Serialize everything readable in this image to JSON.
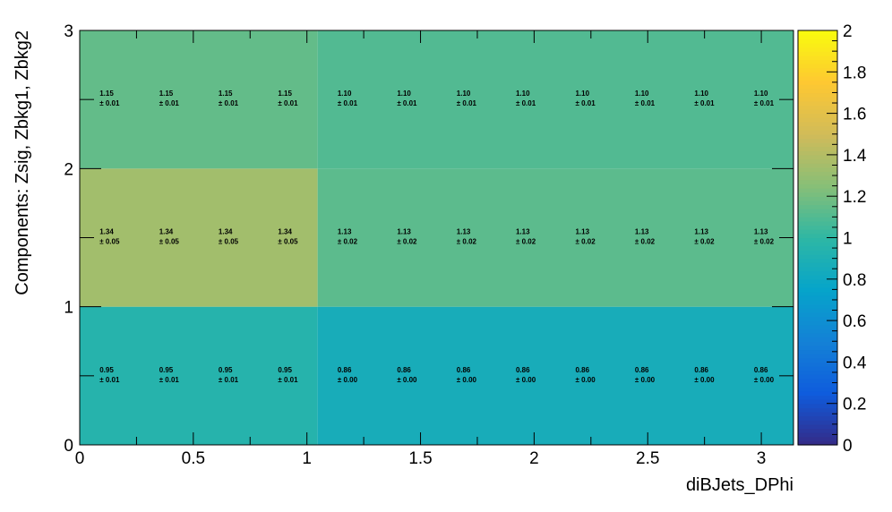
{
  "chart_data": {
    "type": "heatmap",
    "xlabel": "diBJets_DPhi",
    "ylabel": "Components: Zsig, Zbkg1, Zbkg2",
    "xlim": [
      0,
      3.14159
    ],
    "ylim": [
      0,
      3
    ],
    "zlim": [
      0,
      2
    ],
    "x_ticks": [
      "0",
      "0.5",
      "1",
      "1.5",
      "2",
      "2.5",
      "3"
    ],
    "y_ticks": [
      "0",
      "1",
      "2",
      "3"
    ],
    "colorbar_ticks": [
      "0",
      "0.2",
      "0.4",
      "0.6",
      "0.8",
      "1",
      "1.2",
      "1.4",
      "1.6",
      "1.8",
      "2"
    ],
    "x_bins": [
      0,
      1.0472,
      3.14159
    ],
    "rows": [
      {
        "y_bin": [
          0,
          1
        ],
        "values": [
          0.95,
          0.86
        ]
      },
      {
        "y_bin": [
          1,
          2
        ],
        "values": [
          1.34,
          1.13
        ]
      },
      {
        "y_bin": [
          2,
          3
        ],
        "values": [
          1.15,
          1.1
        ]
      }
    ],
    "label_x_positions": [
      0.131,
      0.393,
      0.654,
      0.916,
      1.178,
      1.44,
      1.702,
      1.963,
      2.225,
      2.487,
      2.749,
      3.011
    ],
    "label_rows": [
      {
        "y": 0.5,
        "values": [
          "0.95",
          "0.95",
          "0.95",
          "0.95",
          "0.86",
          "0.86",
          "0.86",
          "0.86",
          "0.86",
          "0.86",
          "0.86",
          "0.86"
        ],
        "errors": [
          "± 0.01",
          "± 0.01",
          "± 0.01",
          "± 0.01",
          "± 0.00",
          "± 0.00",
          "± 0.00",
          "± 0.00",
          "± 0.00",
          "± 0.00",
          "± 0.00",
          "± 0.00"
        ]
      },
      {
        "y": 1.5,
        "values": [
          "1.34",
          "1.34",
          "1.34",
          "1.34",
          "1.13",
          "1.13",
          "1.13",
          "1.13",
          "1.13",
          "1.13",
          "1.13",
          "1.13"
        ],
        "errors": [
          "± 0.05",
          "± 0.05",
          "± 0.05",
          "± 0.05",
          "± 0.02",
          "± 0.02",
          "± 0.02",
          "± 0.02",
          "± 0.02",
          "± 0.02",
          "± 0.02",
          "± 0.02"
        ]
      },
      {
        "y": 2.5,
        "values": [
          "1.15",
          "1.15",
          "1.15",
          "1.15",
          "1.10",
          "1.10",
          "1.10",
          "1.10",
          "1.10",
          "1.10",
          "1.10",
          "1.10"
        ],
        "errors": [
          "± 0.01",
          "± 0.01",
          "± 0.01",
          "± 0.01",
          "± 0.01",
          "± 0.01",
          "± 0.01",
          "± 0.01",
          "± 0.01",
          "± 0.01",
          "± 0.01",
          "± 0.01"
        ]
      }
    ],
    "palette": [
      "#352a87",
      "#0f5cdd",
      "#1481d6",
      "#06a4ca",
      "#2eb7a4",
      "#87bf77",
      "#d1bb59",
      "#fec832",
      "#f9fb0e"
    ],
    "grid": false,
    "legend": "colorbar-right"
  }
}
